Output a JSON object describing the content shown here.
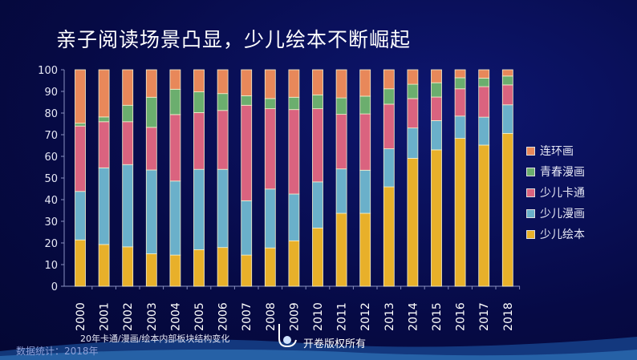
{
  "chart_data": {
    "type": "bar",
    "stacked": true,
    "title": "亲子阅读场景凸显，少儿绘本不断崛起",
    "categories": [
      "2000",
      "2001",
      "2002",
      "2003",
      "2004",
      "2005",
      "2006",
      "2007",
      "2008",
      "2009",
      "2010",
      "2011",
      "2012",
      "2013",
      "2014",
      "2015",
      "2016",
      "2017",
      "2018"
    ],
    "series": [
      {
        "name": "少儿绘本",
        "color": "#E8B02A",
        "values": [
          21.4,
          19.3,
          18.2,
          15.0,
          14.4,
          16.9,
          17.9,
          14.4,
          17.7,
          21.0,
          26.9,
          33.7,
          33.7,
          45.9,
          59.1,
          63.0,
          68.3,
          65.2,
          70.6
        ]
      },
      {
        "name": "少儿漫画",
        "color": "#6AB0CA",
        "values": [
          22.4,
          35.4,
          38.0,
          38.7,
          34.2,
          37.1,
          36.1,
          25.1,
          27.2,
          21.6,
          21.3,
          20.5,
          19.9,
          17.6,
          14.0,
          13.5,
          10.3,
          12.9,
          13.2
        ]
      },
      {
        "name": "少儿卡通",
        "color": "#DA637F",
        "values": [
          30.2,
          21.3,
          19.8,
          19.7,
          30.7,
          26.2,
          27.2,
          44.1,
          37.1,
          39.0,
          33.8,
          25.2,
          26.0,
          20.6,
          13.6,
          10.9,
          12.6,
          14.1,
          9.2
        ]
      },
      {
        "name": "青春漫画",
        "color": "#6BAE6E",
        "values": [
          1.3,
          2.2,
          7.6,
          13.9,
          11.7,
          9.6,
          7.8,
          4.4,
          4.7,
          5.7,
          6.4,
          7.6,
          8.2,
          7.1,
          6.6,
          6.6,
          5.1,
          3.9,
          4.1
        ]
      },
      {
        "name": "连环画",
        "color": "#E8885A",
        "values": [
          24.7,
          21.8,
          16.4,
          12.7,
          9.0,
          10.2,
          11.0,
          12.0,
          13.3,
          12.7,
          11.6,
          13.0,
          12.2,
          8.8,
          6.7,
          6.0,
          3.7,
          3.9,
          2.9
        ]
      }
    ],
    "yticks": [
      "0",
      "10",
      "20",
      "30",
      "40",
      "50",
      "60",
      "70",
      "80",
      "90",
      "100"
    ],
    "ylim": [
      0,
      100
    ],
    "grid": false,
    "legend_position": "right",
    "legend_order": [
      "连环画",
      "青春漫画",
      "少儿卡通",
      "少儿漫画",
      "少儿绘本"
    ]
  },
  "footer": {
    "note": "20年卡通/漫画/绘本内部板块结构变化",
    "source": "数据统计：2018年",
    "copyright": "开卷版权所有"
  }
}
